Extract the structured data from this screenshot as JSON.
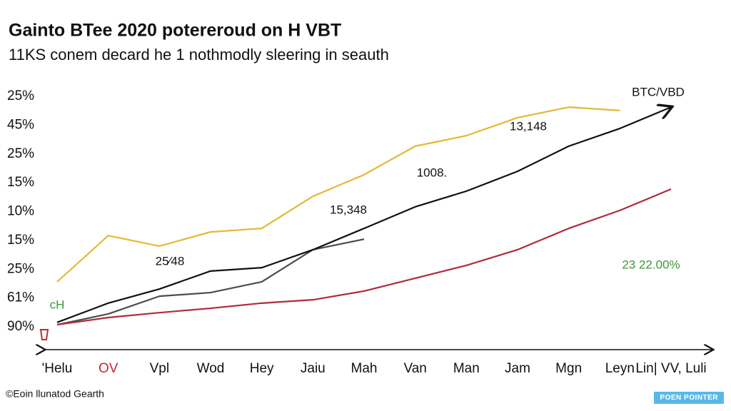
{
  "chart_data": {
    "type": "line",
    "title": "Gainto BTee 2020 potereroud on H VBT",
    "subtitle": "11KS conem decard he 1 nothmodly sleering in seauth",
    "y_axis_labels": [
      "25%",
      "45%",
      "25%",
      "15%",
      "10%",
      "15%",
      "25%",
      "61%",
      "90%"
    ],
    "categories": [
      "'Helu",
      "OV",
      "Vpl",
      "Wod",
      "Hey",
      "Jaiu",
      "Mah",
      "Van",
      "Man",
      "Jam",
      "Mgn",
      "Leyn",
      "Lin| VV, Luli"
    ],
    "highlight_category": 1,
    "highlight_color": "#c0283a",
    "ylim": [
      0,
      100
    ],
    "series": [
      {
        "color": "#e6b832",
        "values": [
          26.4,
          44.4,
          40.3,
          45.8,
          47.2,
          59.7,
          68.1,
          79.2,
          83.3,
          90.3,
          94.4,
          93.1,
          null
        ]
      },
      {
        "color": "#4a4e4e",
        "values": [
          9.7,
          13.9,
          20.8,
          22.2,
          26.4,
          38.9,
          43.0,
          null,
          null,
          null,
          null,
          null,
          null
        ]
      },
      {
        "name": "BTC/VBD",
        "color": "#111111",
        "values": [
          10.6,
          18.1,
          23.6,
          30.6,
          31.9,
          38.9,
          47.2,
          55.6,
          61.7,
          69.4,
          79.2,
          86.1,
          94.4
        ]
      },
      {
        "color": "#b02a3c",
        "values": [
          9.7,
          12.5,
          14.4,
          16.1,
          18.1,
          19.4,
          22.8,
          27.8,
          32.8,
          38.9,
          47.2,
          54.2,
          62.5
        ]
      }
    ],
    "annotations": [
      {
        "text": "25⁄48",
        "color": "#111111"
      },
      {
        "text": "15,348",
        "color": "#111111"
      },
      {
        "text": "1008.",
        "color": "#111111"
      },
      {
        "text": "13,148",
        "color": "#111111"
      },
      {
        "text": "23 22.00%",
        "color": "#3a9a3a"
      },
      {
        "text": "cH",
        "color": "#3a9a3a"
      }
    ],
    "footer": "©Eoin llunatod Gearth",
    "badge": "POEN POINTER"
  }
}
